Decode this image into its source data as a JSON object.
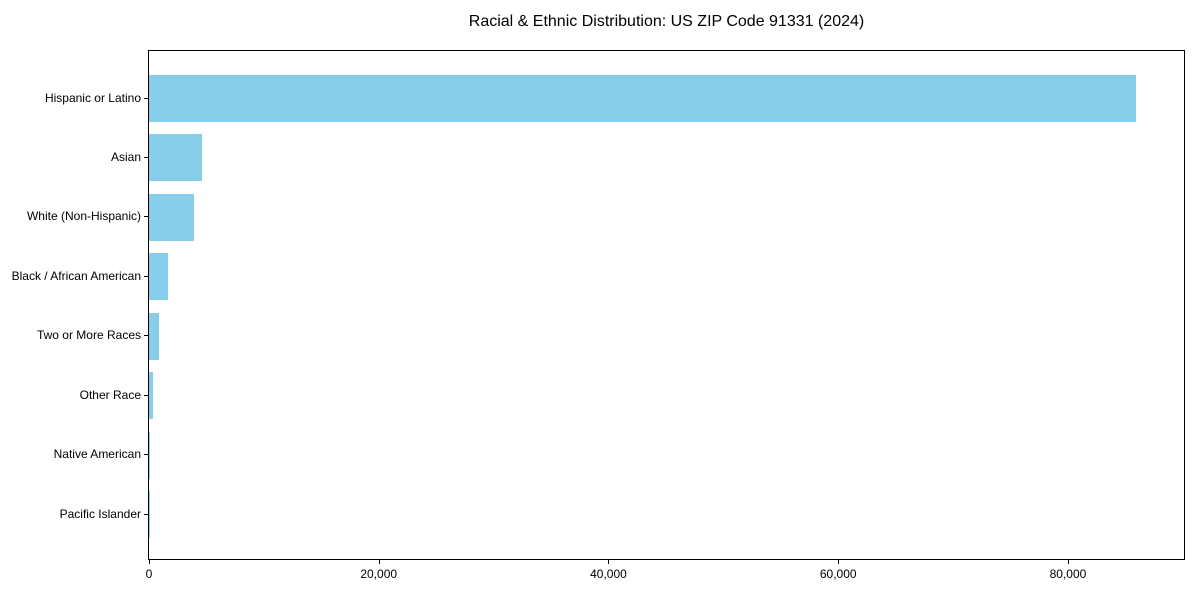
{
  "chart_data": {
    "type": "bar",
    "orientation": "horizontal",
    "title": "Racial & Ethnic Distribution: US ZIP Code 91331 (2024)",
    "xlabel": "",
    "ylabel": "",
    "categories": [
      "Hispanic or Latino",
      "Asian",
      "White (Non-Hispanic)",
      "Black / African American",
      "Two or More Races",
      "Other Race",
      "Native American",
      "Pacific Islander"
    ],
    "values": [
      85900,
      4580,
      3950,
      1680,
      900,
      370,
      90,
      25
    ],
    "xlim": [
      0,
      90100
    ],
    "xticks": [
      0,
      20000,
      40000,
      60000,
      80000
    ],
    "xtick_labels": [
      "0",
      "20,000",
      "40,000",
      "60,000",
      "80,000"
    ],
    "grid": false,
    "legend": false
  },
  "colors": {
    "bar": "#87CEEB",
    "axis": "#000000",
    "text": "#000000",
    "background": "#FFFFFF"
  }
}
